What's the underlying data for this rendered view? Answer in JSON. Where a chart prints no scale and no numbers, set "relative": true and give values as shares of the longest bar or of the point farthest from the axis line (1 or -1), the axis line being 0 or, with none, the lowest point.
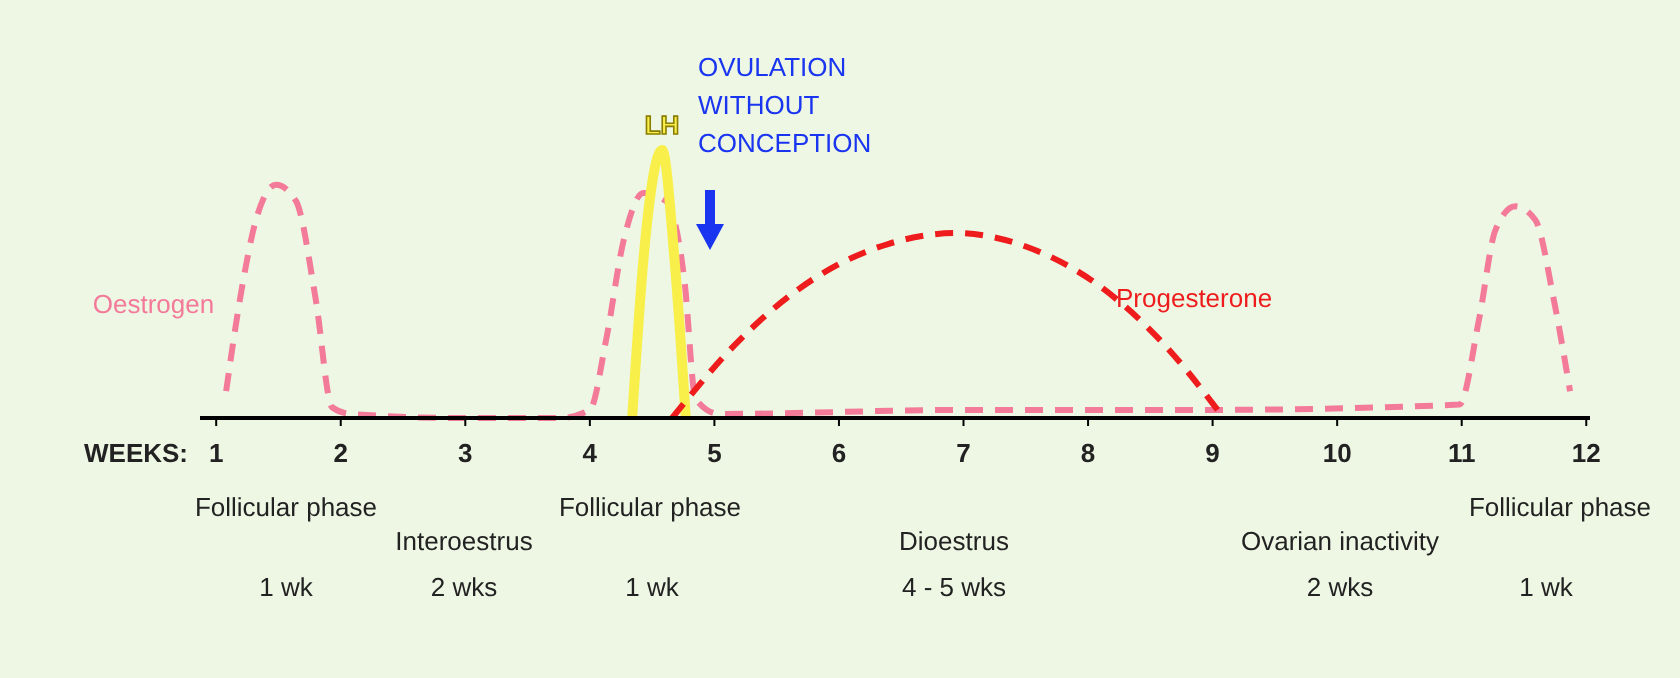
{
  "chart_data": {
    "type": "line",
    "relative": true,
    "xlabel": "WEEKS:",
    "xlim": [
      0.87,
      12.03
    ],
    "xticks": [
      1,
      2,
      3,
      4,
      5,
      6,
      7,
      8,
      9,
      10,
      11,
      12
    ],
    "legend": false,
    "grid": false,
    "series": [
      {
        "name": "Oestrogen",
        "color": "#f47a9a",
        "line_style": "dashed",
        "x": [
          1.08,
          1.19,
          1.32,
          1.48,
          1.64,
          1.8,
          1.93,
          2.08,
          2.96,
          3.76,
          4.0,
          4.13,
          4.27,
          4.43,
          4.61,
          4.76,
          4.85,
          5.04,
          6.97,
          8.9,
          10.98,
          11.14,
          11.27,
          11.43,
          11.59,
          11.74,
          11.87
        ],
        "values": [
          0.1,
          0.44,
          0.74,
          0.87,
          0.81,
          0.44,
          0.04,
          0.015,
          0,
          0,
          0.03,
          0.29,
          0.66,
          0.84,
          0.81,
          0.51,
          0.07,
          0.015,
          0.03,
          0.03,
          0.05,
          0.37,
          0.7,
          0.79,
          0.74,
          0.44,
          0.1
        ]
      },
      {
        "name": "LH",
        "color": "#f8ef4a",
        "line_style": "solid",
        "x": [
          4.34,
          4.43,
          4.58,
          4.68,
          4.77
        ],
        "values": [
          0,
          0.59,
          1,
          0.59,
          0
        ]
      },
      {
        "name": "Progesterone",
        "color": "#ee1c1c",
        "line_style": "dashed",
        "x": [
          4.66,
          5.2,
          5.8,
          6.4,
          6.94,
          7.5,
          8.1,
          8.6,
          9.09
        ],
        "values": [
          0,
          0.29,
          0.52,
          0.65,
          0.69,
          0.64,
          0.49,
          0.28,
          0
        ]
      }
    ],
    "annotations": [
      "OVULATION WITHOUT CONCEPTION",
      "Follicular phase",
      "1 wk",
      "Interoestrus",
      "2 wks",
      "Follicular phase",
      "1 wk",
      "Dioestrus",
      "4 - 5 wks",
      "Ovarian inactivity",
      "2 wks",
      "Follicular phase",
      "1 wk"
    ]
  }
}
